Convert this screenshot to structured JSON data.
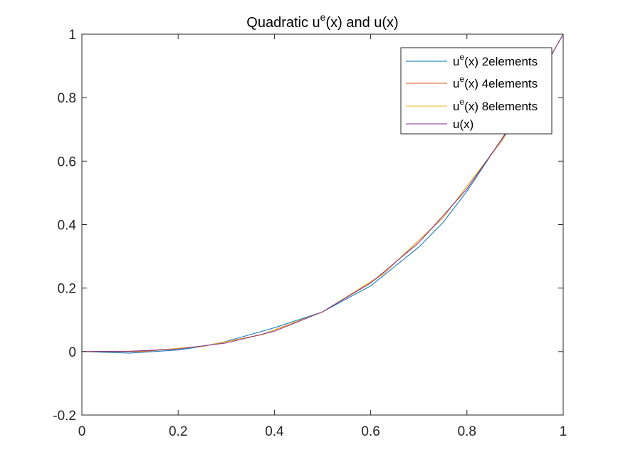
{
  "chart_data": {
    "type": "line",
    "title_main": "Quadratic u",
    "title_sup": "e",
    "title_tail": "(x) and u(x)",
    "xlim": [
      0,
      1
    ],
    "ylim": [
      -0.2,
      1
    ],
    "x_ticks": [
      0,
      0.2,
      0.4,
      0.6,
      0.8,
      1
    ],
    "x_tick_labels": [
      "0",
      "0.2",
      "0.4",
      "0.6",
      "0.8",
      "1"
    ],
    "y_ticks": [
      -0.2,
      0,
      0.2,
      0.4,
      0.6,
      0.8,
      1
    ],
    "y_tick_labels": [
      "-0.2",
      "0",
      "0.2",
      "0.4",
      "0.6",
      "0.8",
      "1"
    ],
    "grid": false,
    "legend_placement": "top-right",
    "series": [
      {
        "legend_pre": "u",
        "legend_sup": "e",
        "legend_post": "(x) 2elements",
        "color": "#0072BD",
        "x": [
          0,
          0.1,
          0.2,
          0.25,
          0.3,
          0.4,
          0.5,
          0.6,
          0.7,
          0.75,
          0.8,
          0.9,
          1.0
        ],
        "y": [
          0,
          -0.005,
          0.005,
          0.016,
          0.032,
          0.075,
          0.125,
          0.207,
          0.329,
          0.406,
          0.505,
          0.733,
          1.0
        ]
      },
      {
        "legend_pre": "u",
        "legend_sup": "e",
        "legend_post": "(x) 4elements",
        "color": "#D95319",
        "x": [
          0,
          0.125,
          0.25,
          0.375,
          0.5,
          0.625,
          0.75,
          0.875,
          1.0
        ],
        "y": [
          0,
          0.0,
          0.016,
          0.054,
          0.125,
          0.243,
          0.421,
          0.669,
          1.0
        ]
      },
      {
        "legend_pre": "u",
        "legend_sup": "e",
        "legend_post": "(x) 8elements",
        "color": "#EDB120",
        "x": [
          0,
          0.125,
          0.25,
          0.375,
          0.5,
          0.625,
          0.75,
          0.875,
          1.0
        ],
        "y": [
          0,
          0.002,
          0.016,
          0.053,
          0.125,
          0.244,
          0.422,
          0.67,
          1.0
        ]
      },
      {
        "legend_pre": "u(x)",
        "legend_sup": "",
        "legend_post": "",
        "color": "#7E2F8E",
        "x": [
          0,
          0.1,
          0.2,
          0.3,
          0.4,
          0.5,
          0.6,
          0.7,
          0.8,
          0.9,
          1.0
        ],
        "y": [
          0,
          0.001,
          0.008,
          0.027,
          0.064,
          0.125,
          0.216,
          0.343,
          0.512,
          0.729,
          1.0
        ]
      }
    ]
  }
}
